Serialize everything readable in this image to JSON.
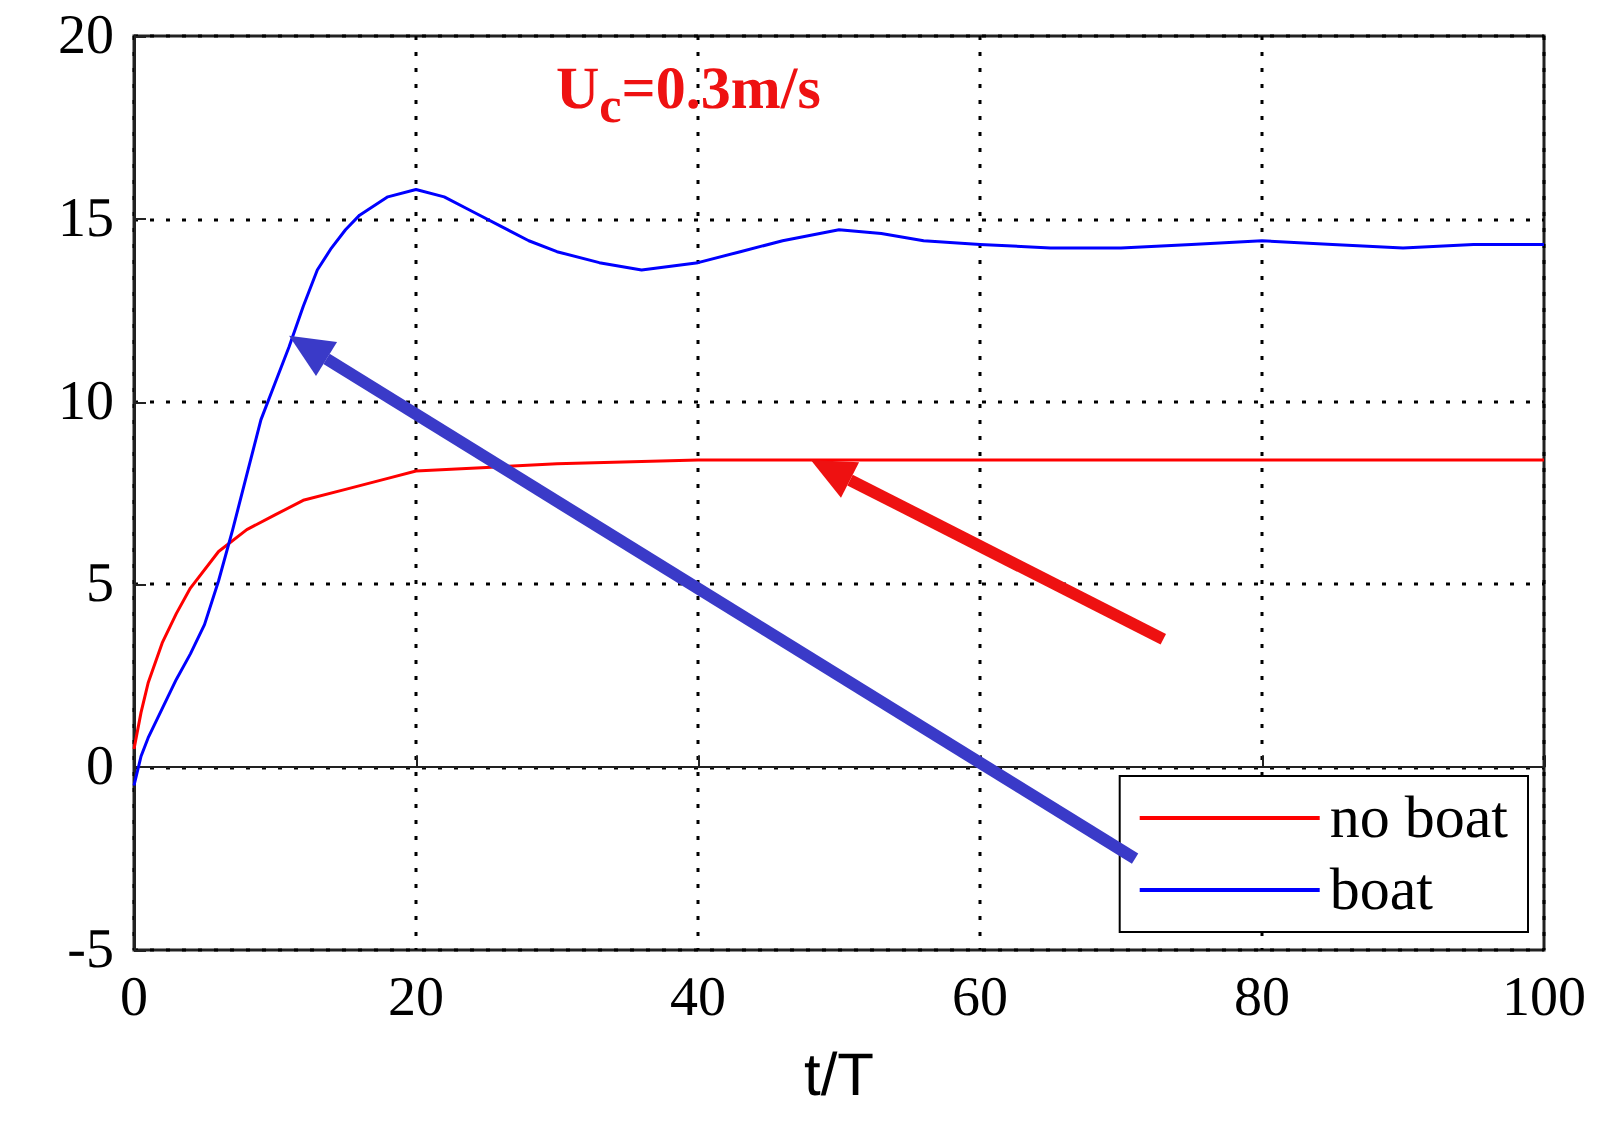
{
  "chart_data": {
    "type": "line",
    "xlabel": "t/T",
    "xlim": [
      0,
      100
    ],
    "xticks": [
      0,
      20,
      40,
      60,
      80,
      100
    ],
    "ylim": [
      -5,
      20
    ],
    "yticks": [
      -5,
      0,
      5,
      10,
      15,
      20
    ],
    "grid": true,
    "legend": "bottom right",
    "marker": "none",
    "line_style": "solid",
    "annotations": [
      "U$_{c}$=0.3m/s"
    ],
    "series": [
      {
        "name": "no boat",
        "color": "#ff0000",
        "x": [
          0,
          0.5,
          1,
          2,
          3,
          4,
          6,
          8,
          10,
          12,
          15,
          18,
          20,
          25,
          30,
          40,
          50,
          60,
          70,
          80,
          90,
          100
        ],
        "values": [
          0.5,
          1.5,
          2.3,
          3.4,
          4.2,
          4.9,
          5.9,
          6.5,
          6.9,
          7.3,
          7.6,
          7.9,
          8.1,
          8.2,
          8.3,
          8.4,
          8.4,
          8.4,
          8.4,
          8.4,
          8.4,
          8.4
        ]
      },
      {
        "name": "boat",
        "color": "#0000ff",
        "x": [
          0,
          0.5,
          1,
          2,
          3,
          4,
          5,
          6,
          7,
          8,
          9,
          10,
          11,
          12,
          13,
          14,
          15,
          16,
          18,
          20,
          22,
          24,
          26,
          28,
          30,
          33,
          36,
          40,
          43,
          46,
          50,
          53,
          56,
          60,
          65,
          70,
          75,
          80,
          85,
          90,
          95,
          100
        ],
        "values": [
          -0.5,
          0.3,
          0.8,
          1.6,
          2.4,
          3.1,
          3.9,
          5.1,
          6.5,
          8,
          9.5,
          10.5,
          11.5,
          12.6,
          13.6,
          14.2,
          14.7,
          15.1,
          15.6,
          15.8,
          15.6,
          15.2,
          14.8,
          14.4,
          14.1,
          13.8,
          13.6,
          13.8,
          14.1,
          14.4,
          14.7,
          14.6,
          14.4,
          14.3,
          14.2,
          14.2,
          14.3,
          14.4,
          14.3,
          14.2,
          14.3,
          14.3
        ]
      }
    ]
  }
}
